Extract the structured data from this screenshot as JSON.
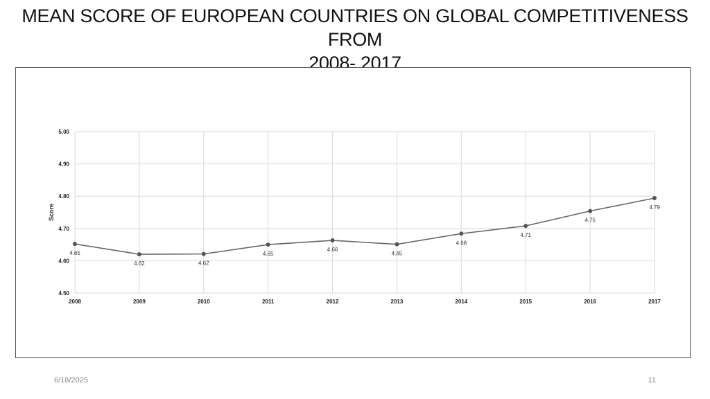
{
  "slide": {
    "title_line1": "MEAN SCORE OF EUROPEAN COUNTRIES ON GLOBAL COMPETITIVENESS FROM",
    "title_line2": "2008- 2017",
    "date": "6/18/2025",
    "page_number": "11"
  },
  "chart_data": {
    "type": "line",
    "title": "",
    "xlabel": "",
    "ylabel": "Score",
    "x": [
      "2008",
      "2009",
      "2010",
      "2011",
      "2012",
      "2013",
      "2014",
      "2015",
      "2016",
      "2017"
    ],
    "series": [
      {
        "values": [
          4.652,
          4.62,
          4.621,
          4.65,
          4.663,
          4.651,
          4.684,
          4.708,
          4.754,
          4.794
        ]
      }
    ],
    "data_labels": [
      "4.65",
      "4.62",
      "4.62",
      "4.65",
      "4.66",
      "4.65",
      "4.68",
      "4.71",
      "4.75",
      "4.79"
    ],
    "yticks": [
      "4.50",
      "4.60",
      "4.70",
      "4.80",
      "4.90",
      "5.00"
    ],
    "ylim": [
      4.5,
      5.0
    ],
    "grid": true,
    "legend": "none",
    "colors": {
      "line": "#666666",
      "marker": "#555555",
      "grid": "#d9d9d9"
    }
  }
}
